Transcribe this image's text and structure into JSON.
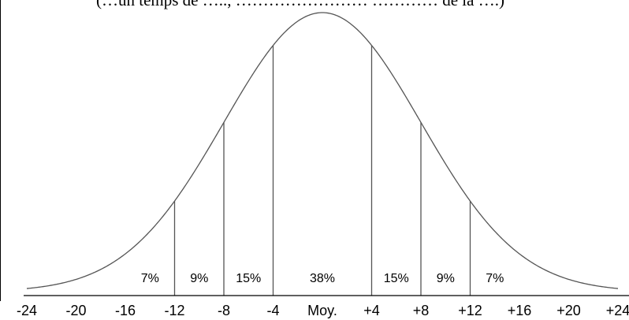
{
  "header": {
    "caption_fragment": "(…un temps de ….., …………………… ………… de la ….)"
  },
  "chart_data": {
    "type": "area",
    "subtype": "normal-distribution",
    "title": "",
    "xlabel": "",
    "ylabel": "",
    "xlim": [
      -24,
      24
    ],
    "x_tick_values": [
      -24,
      -20,
      -16,
      -12,
      -8,
      -4,
      0,
      4,
      8,
      12,
      16,
      20,
      24
    ],
    "x_tick_labels": [
      "-24",
      "-20",
      "-16",
      "-12",
      "-8",
      "-4",
      "Moy.",
      "+4",
      "+8",
      "+12",
      "+16",
      "+20",
      "+24"
    ],
    "curve": {
      "mean": 0,
      "std_dev": 8
    },
    "divider_x": [
      -12,
      -8,
      -4,
      4,
      8,
      12
    ],
    "bands": [
      {
        "from": -16,
        "to": -12,
        "label": "7%"
      },
      {
        "from": -12,
        "to": -8,
        "label": "9%"
      },
      {
        "from": -8,
        "to": -4,
        "label": "15%"
      },
      {
        "from": -4,
        "to": 4,
        "label": "38%"
      },
      {
        "from": 4,
        "to": 8,
        "label": "15%"
      },
      {
        "from": 8,
        "to": 12,
        "label": "9%"
      },
      {
        "from": 12,
        "to": 16,
        "label": "7%"
      }
    ],
    "grid": false,
    "legend": "none",
    "colors": {
      "line": "#555555",
      "axis": "#000000",
      "divider": "#555555"
    }
  }
}
